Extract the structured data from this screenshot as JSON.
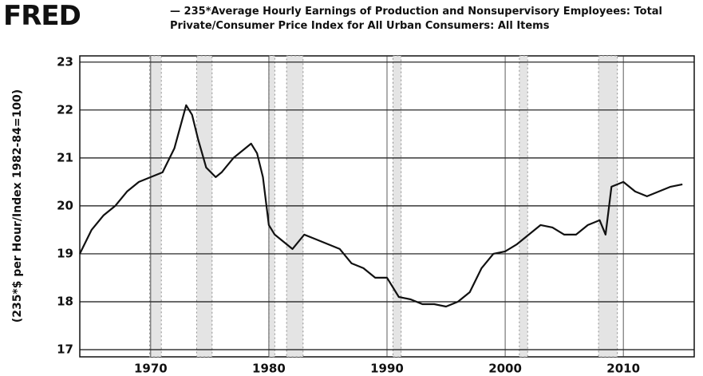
{
  "logo": "FRED",
  "chart_data": {
    "type": "line",
    "y_label": "(235*$ per Hour/Index 1982-84=100)",
    "x": [
      1964,
      1965,
      1966,
      1967,
      1968,
      1969,
      1970,
      1971,
      1972,
      1973,
      1973.5,
      1974,
      1974.7,
      1975.5,
      1976,
      1977,
      1978,
      1978.5,
      1979,
      1979.5,
      1980,
      1980.5,
      1981,
      1982,
      1983,
      1984,
      1985,
      1986,
      1987,
      1988,
      1989,
      1990,
      1991,
      1992,
      1993,
      1994,
      1995,
      1996,
      1997,
      1998,
      1999,
      2000,
      2001,
      2002,
      2003,
      2004,
      2005,
      2006,
      2007,
      2008,
      2008.5,
      2009,
      2010,
      2011,
      2012,
      2013,
      2014,
      2015
    ],
    "series": [
      {
        "name": "235*Average Hourly Earnings of Production and Nonsupervisory Employees: Total Private/Consumer Price Index for All Urban Consumers: All Items",
        "color": "#111111",
        "values": [
          19.0,
          19.5,
          19.8,
          20.0,
          20.3,
          20.5,
          20.6,
          20.7,
          21.2,
          22.1,
          21.9,
          21.4,
          20.8,
          20.6,
          20.7,
          21.0,
          21.2,
          21.3,
          21.1,
          20.6,
          19.6,
          19.4,
          19.3,
          19.1,
          19.4,
          19.3,
          19.2,
          19.1,
          18.8,
          18.7,
          18.5,
          18.5,
          18.1,
          18.05,
          17.95,
          17.95,
          17.9,
          18.0,
          18.2,
          18.7,
          19.0,
          19.05,
          19.2,
          19.4,
          19.6,
          19.55,
          19.4,
          19.4,
          19.6,
          19.7,
          19.4,
          20.4,
          20.5,
          20.3,
          20.2,
          20.3,
          20.4,
          20.45
        ]
      }
    ],
    "recessions": [
      [
        1969.9,
        1970.9
      ],
      [
        1973.9,
        1975.2
      ],
      [
        1980.0,
        1980.5
      ],
      [
        1981.5,
        1982.9
      ],
      [
        1990.5,
        1991.2
      ],
      [
        2001.2,
        2001.9
      ],
      [
        2007.9,
        2009.5
      ]
    ],
    "xlim": [
      1964,
      2016
    ],
    "xticks": [
      1970,
      1980,
      1990,
      2000,
      2010
    ],
    "ylim": [
      16.85,
      23.13
    ],
    "yticks": [
      17,
      18,
      19,
      20,
      21,
      22,
      23
    ],
    "grid": true
  }
}
